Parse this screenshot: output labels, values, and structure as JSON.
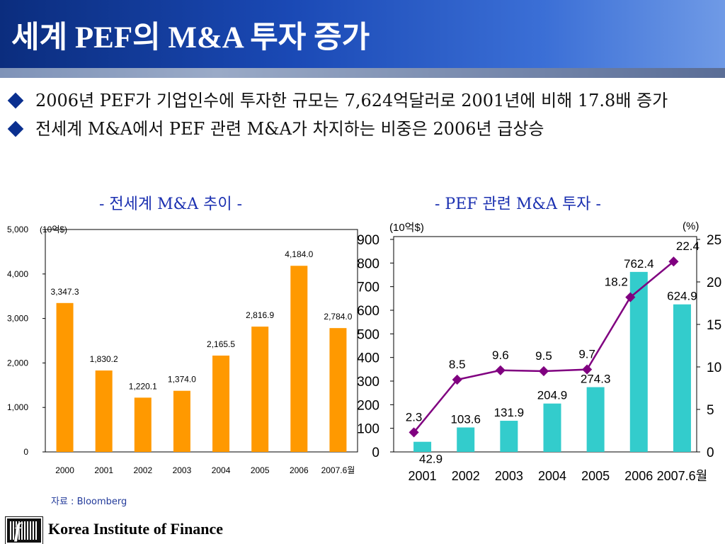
{
  "title": "세계 PEF의 M&A 투자 증가",
  "bullets": [
    "2006년 PEF가 기업인수에 투자한 규모는 7,624억달러로 2001년에 비해 17.8배 증가",
    "전세계 M&A에서 PEF 관련 M&A가 차지하는 비중은 2006년 급상승"
  ],
  "left_chart_title": "-  전세계 M&A 추이 -",
  "right_chart_title": "-  PEF 관련 M&A 투자 -",
  "source": "자료 : Bloomberg",
  "footer_org": "Korea Institute of Finance",
  "colors": {
    "bar_left": "#ff9900",
    "bar_right": "#33cccc",
    "line": "#800080",
    "title_bg": "#1a49b5"
  },
  "chart_data": [
    {
      "type": "bar",
      "title": "전세계 M&A 추이",
      "unit_label": "(10억$)",
      "categories": [
        "2000",
        "2001",
        "2002",
        "2003",
        "2004",
        "2005",
        "2006",
        "2007.6월"
      ],
      "values": [
        3347.3,
        1830.2,
        1220.1,
        1374.0,
        2165.5,
        2816.9,
        4184.0,
        2784.0
      ],
      "value_labels": [
        "3,347.3",
        "1,830.2",
        "1,220.1",
        "1,374.0",
        "2,165.5",
        "2,816.9",
        "4,184.0",
        "2,784.0"
      ],
      "yticks": [
        "0",
        "1,000",
        "2,000",
        "3,000",
        "4,000",
        "5,000"
      ],
      "ylim": [
        0,
        5000
      ],
      "grid": false
    },
    {
      "type": "bar",
      "title": "PEF 관련 M&A 투자",
      "unit_label_left": "(10억$)",
      "unit_label_right": "(%)",
      "categories": [
        "2001",
        "2002",
        "2003",
        "2004",
        "2005",
        "2006",
        "2007.6월"
      ],
      "series": [
        {
          "values": [
            42.9,
            103.6,
            131.9,
            204.9,
            274.3,
            762.4,
            624.9
          ],
          "kind": "bar",
          "axis": "left"
        },
        {
          "values": [
            2.3,
            8.5,
            9.6,
            9.5,
            9.7,
            18.2,
            22.4
          ],
          "kind": "line",
          "axis": "right"
        }
      ],
      "bar_labels": [
        "42.9",
        "103.6",
        "131.9",
        "204.9",
        "274.3",
        "762.4",
        "624.9"
      ],
      "line_labels": [
        "2.3",
        "8.5",
        "9.6",
        "9.5",
        "9.7",
        "18.2",
        "22.4"
      ],
      "yticks_left": [
        "0",
        "100",
        "200",
        "300",
        "400",
        "500",
        "600",
        "700",
        "800",
        "900"
      ],
      "yticks_right": [
        "0",
        "5",
        "10",
        "15",
        "20",
        "25"
      ],
      "ylim_left": [
        0,
        900
      ],
      "ylim_right": [
        0,
        25
      ],
      "grid": false
    }
  ]
}
